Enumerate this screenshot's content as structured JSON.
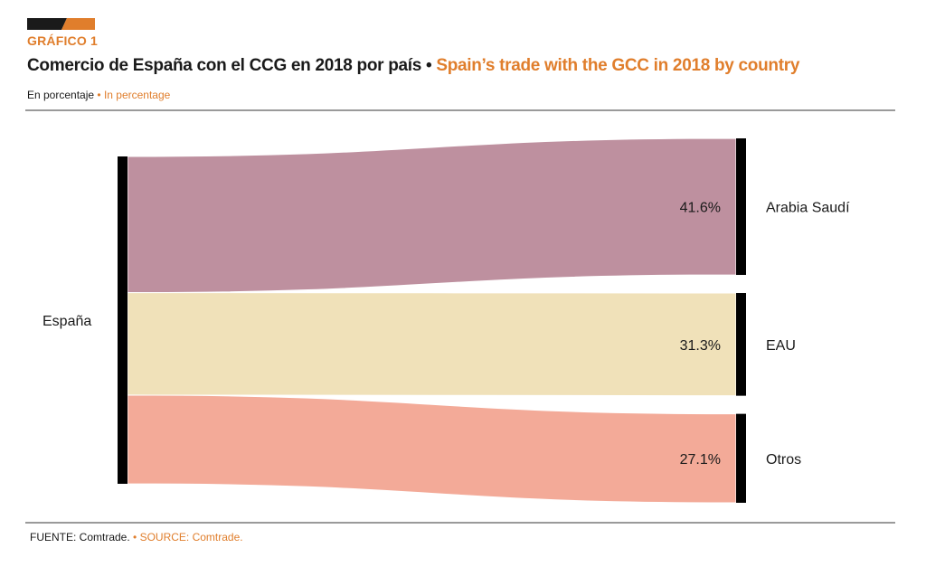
{
  "header": {
    "kicker": "GRÁFICO 1",
    "title_es": "Comercio de España con el CCG en 2018 por país",
    "separator": " • ",
    "title_en": "Spain’s trade with the GCC in 2018 by country",
    "subtitle_es": "En porcentaje",
    "subtitle_sep": " • ",
    "subtitle_en": "In percentage"
  },
  "footer": {
    "source_es": "FUENTE: Comtrade.",
    "source_sep": " • ",
    "source_en": "SOURCE: Comtrade."
  },
  "colors": {
    "accent": "#e07e2c",
    "dark": "#1a1a1a"
  },
  "chart_data": {
    "type": "sankey",
    "title": "Comercio de España con el CCG en 2018 por país",
    "unit": "%",
    "source": {
      "name": "España"
    },
    "flows": [
      {
        "target": "Arabia Saudí",
        "value": 41.6,
        "label": "41.6%",
        "color": "#be909f"
      },
      {
        "target": "EAU",
        "value": 31.3,
        "label": "31.3%",
        "color": "#f0e1b9"
      },
      {
        "target": "Otros",
        "value": 27.1,
        "label": "27.1%",
        "color": "#f3aa98"
      }
    ]
  }
}
